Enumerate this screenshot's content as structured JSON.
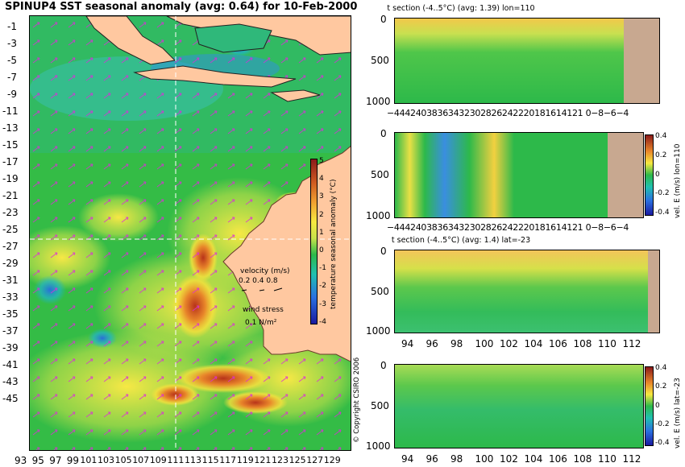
{
  "main_map": {
    "title": "SPINUP4 SST seasonal anomaly (avg: 0.64) for 10-Feb-2000",
    "lat_ticks": [
      "-1",
      "-3",
      "-5",
      "-7",
      "-9",
      "-11",
      "-13",
      "-15",
      "-17",
      "-19",
      "-21",
      "-23",
      "-25",
      "-27",
      "-29",
      "-31",
      "-33",
      "-35",
      "-37",
      "-39",
      "-41",
      "-43",
      "-45"
    ],
    "lon_ticks": [
      "93",
      "95",
      "97",
      "99",
      "101",
      "103",
      "105",
      "107",
      "109",
      "111",
      "113",
      "115",
      "117",
      "119",
      "121",
      "123",
      "125",
      "127",
      "129"
    ],
    "colorbar": {
      "label": "temperature seasonal anomaly (°C)",
      "ticks": [
        "5",
        "4",
        "3",
        "2",
        "1",
        "0",
        "-1",
        "-2",
        "-3",
        "-4"
      ],
      "range": [
        -4,
        5
      ]
    },
    "legend": {
      "velocity_title": "velocity (m/s)",
      "velocity_scale": "0.2 0.4 0.8",
      "wind_title": "wind stress",
      "wind_scale": "0.1 N/m²"
    },
    "copyright": "© Copyright CSIRO 2006",
    "colors": {
      "land": "#ffc8a0",
      "background": "#22b43c",
      "vector": "#dd2adb"
    }
  },
  "panels": [
    {
      "title": "t section (-4..5°C) (avg: 1.39) lon=110",
      "y_ticks": [
        "0",
        "500",
        "1000"
      ],
      "x_ticks": [
        "-44",
        "42",
        "40",
        "38",
        "36",
        "34",
        "32",
        "30",
        "28",
        "26",
        "24",
        "22",
        "20",
        "18",
        "16",
        "14",
        "12",
        "10",
        "-8",
        "-6",
        "-4"
      ],
      "x_ticks_text": "−44424038363432302826242220181614121 0−8−6−4",
      "colorbar_label": "",
      "colorbar_ticks": []
    },
    {
      "title": "",
      "y_ticks": [
        "0",
        "500",
        "1000"
      ],
      "x_ticks_text": "−44424038363432302826242220181614121 0−8−6−4",
      "colorbar_label": "vel. E (m/s) lon=110",
      "colorbar_ticks": [
        "0.4",
        "0.2",
        "0",
        "-0.2",
        "-0.4"
      ]
    },
    {
      "title": "t section (-4..5°C) (avg: 1.4) lat=-23",
      "y_ticks": [
        "0",
        "500",
        "1000"
      ],
      "x_ticks": [
        "94",
        "96",
        "98",
        "100",
        "102",
        "104",
        "106",
        "108",
        "110",
        "112"
      ],
      "colorbar_label": "",
      "colorbar_ticks": []
    },
    {
      "title": "",
      "y_ticks": [
        "0",
        "500",
        "1000"
      ],
      "x_ticks": [
        "94",
        "96",
        "98",
        "100",
        "102",
        "104",
        "106",
        "108",
        "110",
        "112"
      ],
      "colorbar_label": "vel. E (m/s) lat=-23",
      "colorbar_ticks": [
        "0.4",
        "0.2",
        "0",
        "-0.2",
        "-0.4"
      ]
    }
  ]
}
